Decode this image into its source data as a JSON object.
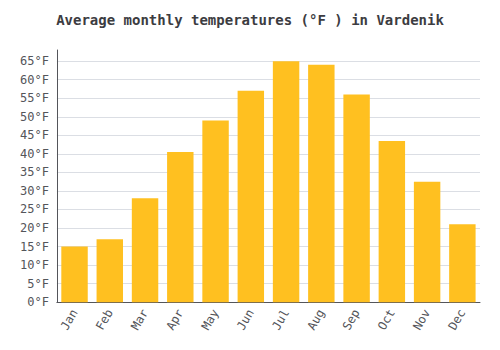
{
  "chart_data": {
    "type": "bar",
    "title": "Average monthly temperatures (°F ) in Vardenik",
    "categories": [
      "Jan",
      "Feb",
      "Mar",
      "Apr",
      "May",
      "Jun",
      "Jul",
      "Aug",
      "Sep",
      "Oct",
      "Nov",
      "Dec"
    ],
    "values": [
      15,
      17,
      28,
      40.5,
      49,
      57,
      65,
      64,
      56,
      43.5,
      32.5,
      21
    ],
    "color": "#FFC020",
    "ylim": [
      0,
      68
    ],
    "yticks": [
      {
        "value": 0,
        "label": "0°F"
      },
      {
        "value": 5,
        "label": "5°F"
      },
      {
        "value": 10,
        "label": "10°F"
      },
      {
        "value": 15,
        "label": "15°F"
      },
      {
        "value": 20,
        "label": "20°F"
      },
      {
        "value": 25,
        "label": "25°F"
      },
      {
        "value": 30,
        "label": "30°F"
      },
      {
        "value": 35,
        "label": "35°F"
      },
      {
        "value": 40,
        "label": "40°F"
      },
      {
        "value": 45,
        "label": "45°F"
      },
      {
        "value": 50,
        "label": "50°F"
      },
      {
        "value": 55,
        "label": "55°F"
      },
      {
        "value": 60,
        "label": "60°F"
      },
      {
        "value": 65,
        "label": "65°F"
      }
    ],
    "grid": true
  }
}
